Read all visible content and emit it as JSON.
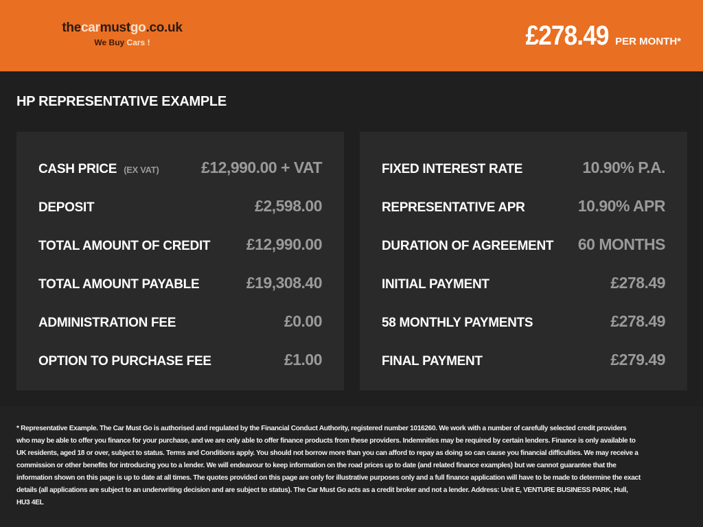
{
  "header": {
    "logo": {
      "part1": "the",
      "part2": "car",
      "part3": "must",
      "part4": "go",
      "part5": ".co.uk",
      "tag1": "We Buy ",
      "tag2": "Cars !"
    },
    "price": "£278.49",
    "per_month": "PER MONTH*",
    "colors": {
      "brand": "#e96f22",
      "background": "#1f1f1f",
      "panel": "#2a2a2a"
    }
  },
  "title": "HP REPRESENTATIVE EXAMPLE",
  "left": [
    {
      "label": "CASH PRICE",
      "note": "(EX VAT)",
      "value": "£12,990.00 + VAT"
    },
    {
      "label": "DEPOSIT",
      "value": "£2,598.00"
    },
    {
      "label": "TOTAL AMOUNT OF CREDIT",
      "value": "£12,990.00"
    },
    {
      "label": "TOTAL AMOUNT PAYABLE",
      "value": "£19,308.40"
    },
    {
      "label": "ADMINISTRATION FEE",
      "value": "£0.00"
    },
    {
      "label": "OPTION TO PURCHASE FEE",
      "value": "£1.00"
    }
  ],
  "right": [
    {
      "label": "FIXED INTEREST RATE",
      "value": "10.90% P.A."
    },
    {
      "label": "REPRESENTATIVE APR",
      "value": "10.90% APR"
    },
    {
      "label": "DURATION OF AGREEMENT",
      "value": "60 MONTHS"
    },
    {
      "label": "INITIAL PAYMENT",
      "value": "£278.49"
    },
    {
      "label": "58 MONTHLY PAYMENTS",
      "value": "£278.49"
    },
    {
      "label": "FINAL PAYMENT",
      "value": "£279.49"
    }
  ],
  "disclaimer": "* Representative Example. The Car Must Go is authorised and regulated by the Financial Conduct Authority, registered number 1016260. We work with a number of carefully selected credit providers who may be able to offer you finance for your purchase, and we are only able to offer finance products from these providers. Indemnities may be required by certain lenders. Finance is only available to UK residents, aged 18 or over, subject to status. Terms and Conditions apply. You should not borrow more than you can afford to repay as doing so can cause you financial difficulties. We may receive a commission or other benefits for introducing you to a lender. We will endeavour to keep information on the road prices up to date (and related finance examples) but we cannot guarantee that the information shown on this page is up to date at all times. The quotes provided on this page are only for illustrative purposes only and a full finance application will have to be made to determine the exact details (all applications are subject to an underwriting decision and are subject to status). The Car Must Go acts as a credit broker and not a lender. Address: Unit E, VENTURE BUSINESS PARK, Hull, HU3 4EL"
}
